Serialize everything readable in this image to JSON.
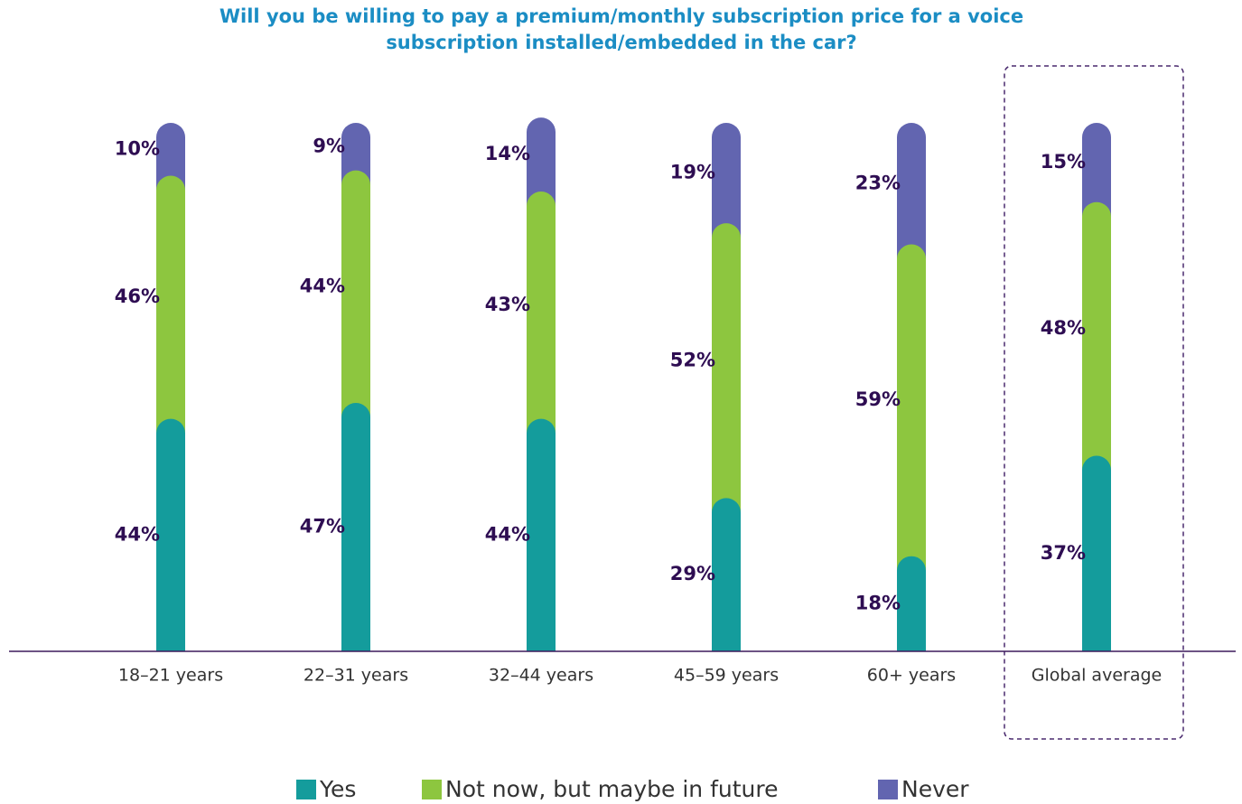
{
  "chart_data": {
    "type": "bar",
    "stacked": true,
    "title": [
      "Will you be willing to pay a premium/monthly subscription price for a voice",
      "subscription installed/embedded in the car?"
    ],
    "categories": [
      "18–21 years",
      "22–31 years",
      "32–44 years",
      "45–59 years",
      "60+ years",
      "Global average"
    ],
    "series": [
      {
        "name": "Yes",
        "color": "#149c9c",
        "values": [
          44,
          47,
          44,
          29,
          18,
          37
        ],
        "value_labels": [
          "44%",
          "47%",
          "44%",
          "29%",
          "18%",
          "37%"
        ]
      },
      {
        "name": "Not now, but maybe in future",
        "color": "#8dc63f",
        "values": [
          46,
          44,
          43,
          52,
          59,
          48
        ],
        "value_labels": [
          "46%",
          "44%",
          "43%",
          "52%",
          "59%",
          "48%"
        ]
      },
      {
        "name": "Never",
        "color": "#6265b0",
        "values": [
          10,
          9,
          14,
          19,
          23,
          15
        ],
        "value_labels": [
          "10%",
          "9%",
          "14%",
          "19%",
          "23%",
          "15%"
        ]
      }
    ],
    "ylim": [
      0,
      100
    ]
  }
}
